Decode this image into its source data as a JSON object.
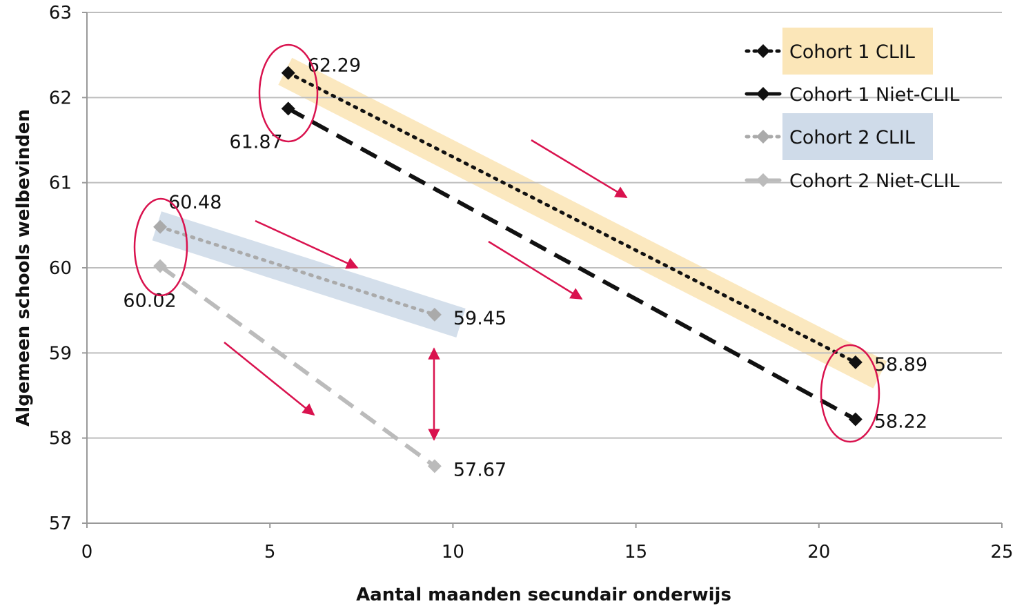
{
  "chart_data": {
    "type": "line",
    "xlabel": "Aantal maanden secundair onderwijs",
    "ylabel": "Algemeen schools welbevinden",
    "xlim": [
      0,
      25
    ],
    "ylim": [
      57,
      63
    ],
    "xticks": [
      0,
      5,
      10,
      15,
      20,
      25
    ],
    "yticks": [
      57,
      58,
      59,
      60,
      61,
      62,
      63
    ],
    "grid": "horizontal",
    "legend_position": "top-right",
    "series": [
      {
        "name": "Cohort 1 CLIL",
        "style": "dotted",
        "color": "#111111",
        "highlight": "#fbe6b8",
        "points": [
          {
            "x": 5.5,
            "y": 62.29,
            "label": "62.29"
          },
          {
            "x": 21,
            "y": 58.89,
            "label": "58.89"
          }
        ]
      },
      {
        "name": "Cohort 1 Niet-CLIL",
        "style": "dashed",
        "color": "#111111",
        "highlight": "",
        "points": [
          {
            "x": 5.5,
            "y": 61.87,
            "label": "61.87"
          },
          {
            "x": 21,
            "y": 58.22,
            "label": "58.22"
          }
        ]
      },
      {
        "name": "Cohort 2 CLIL",
        "style": "dotted",
        "color": "#aaaaaa",
        "highlight": "#cfdbe9",
        "points": [
          {
            "x": 2,
            "y": 60.48,
            "label": "60.48"
          },
          {
            "x": 9.5,
            "y": 59.45,
            "label": "59.45"
          }
        ]
      },
      {
        "name": "Cohort 2 Niet-CLIL",
        "style": "dashed",
        "color": "#bbbbbb",
        "highlight": "",
        "points": [
          {
            "x": 2,
            "y": 60.02,
            "label": "60.02"
          },
          {
            "x": 9.5,
            "y": 57.67,
            "label": "57.67"
          }
        ]
      }
    ],
    "annotation_color": "#d9124e"
  }
}
